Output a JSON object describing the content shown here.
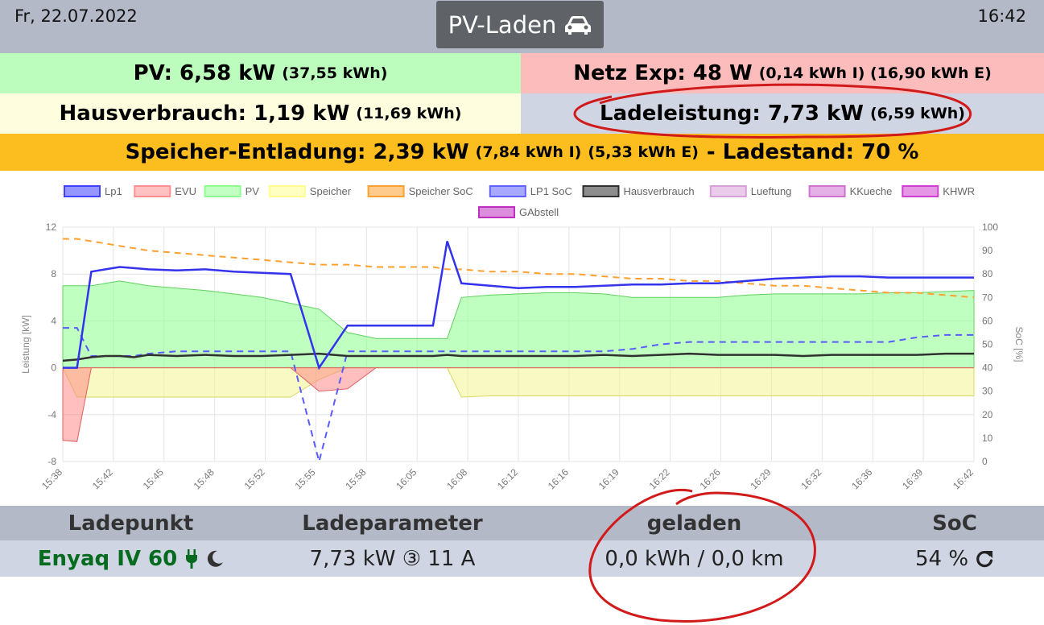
{
  "header": {
    "date": "Fr, 22.07.2022",
    "title": "PV-Laden",
    "time": "16:42"
  },
  "status": {
    "pv": {
      "label": "PV: 6,58 kW",
      "detail": "(37,55 kWh)",
      "color": "#bcfcbc"
    },
    "netz": {
      "label": "Netz Exp: 48 W",
      "detail": "(0,14 kWh I) (16,90 kWh E)",
      "color": "#fcbcbc"
    },
    "haus": {
      "label": "Hausverbrauch: 1,19 kW",
      "detail": "(11,69 kWh)",
      "color": "#fefedf"
    },
    "lade": {
      "label": "Ladeleistung: 7,73 kW",
      "detail": "(6,59 kWh)",
      "color": "#d0d5e3"
    },
    "speicher": {
      "label": "Speicher-Entladung: 2,39 kW",
      "detail1": "(7,84 kWh I)",
      "detail2": "(5,33 kWh E)",
      "label2": "- Ladestand: 70 %",
      "color": "#fcbe1e"
    }
  },
  "chart_data": {
    "type": "line",
    "legend": [
      "Lp1",
      "EVU",
      "PV",
      "Speicher",
      "Speicher SoC",
      "LP1 SoC",
      "Hausverbrauch",
      "Lueftung",
      "KKueche",
      "KHWR",
      "GAbstell"
    ],
    "legend_colors": [
      "#4040ff",
      "#ff9090",
      "#90ff90",
      "#ffff90",
      "#ffa030",
      "#6060ff",
      "#303030",
      "#d8a0d8",
      "#d070d0",
      "#d040d0",
      "#c030c0"
    ],
    "ylabel": "Leistung [kW]",
    "y2label": "SoC [%]",
    "ylim": [
      -8,
      12
    ],
    "y2lim": [
      0,
      100
    ],
    "yticks": [
      "12",
      "8",
      "4",
      "0",
      "-4",
      "-8"
    ],
    "y2ticks": [
      "100",
      "90",
      "80",
      "70",
      "60",
      "50",
      "40",
      "30",
      "20",
      "10",
      "0"
    ],
    "xticks": [
      "15:38",
      "15:42",
      "15:45",
      "15:48",
      "15:52",
      "15:55",
      "15:58",
      "16:05",
      "16:08",
      "16:12",
      "16:16",
      "16:19",
      "16:22",
      "16:26",
      "16:29",
      "16:32",
      "16:36",
      "16:39",
      "16:42"
    ],
    "x_minutes": [
      0,
      1,
      2,
      3,
      4,
      5,
      6,
      8,
      10,
      12,
      14,
      16,
      18,
      20,
      22,
      24,
      26,
      27,
      28,
      30,
      32,
      34,
      36,
      38,
      40,
      42,
      44,
      46,
      48,
      50,
      52,
      54,
      56,
      58,
      60,
      62,
      64
    ],
    "series": [
      {
        "name": "Lp1",
        "values": [
          0,
          0,
          8.2,
          8.4,
          8.6,
          8.5,
          8.4,
          8.3,
          8.4,
          8.2,
          8.1,
          8.0,
          0,
          3.6,
          3.6,
          3.6,
          3.6,
          10.8,
          7.2,
          7.0,
          6.8,
          6.9,
          6.9,
          7.0,
          7.1,
          7.1,
          7.2,
          7.2,
          7.4,
          7.6,
          7.7,
          7.8,
          7.8,
          7.7,
          7.7,
          7.7,
          7.7
        ]
      },
      {
        "name": "EVU",
        "values": [
          -6.2,
          -6.3,
          0,
          0,
          0,
          0,
          0,
          0,
          0,
          0,
          0,
          0,
          -2.0,
          -1.8,
          0,
          0,
          0,
          0,
          0,
          0,
          0,
          0,
          0,
          0,
          0,
          0,
          0,
          0,
          0,
          0,
          0,
          0,
          0,
          0,
          0,
          0,
          0
        ]
      },
      {
        "name": "PV",
        "values": [
          7.0,
          7.0,
          7.0,
          7.2,
          7.4,
          7.2,
          7.0,
          6.8,
          6.6,
          6.3,
          6.0,
          5.5,
          5.0,
          3.0,
          2.5,
          2.5,
          2.5,
          2.5,
          6.0,
          6.2,
          6.3,
          6.4,
          6.4,
          6.3,
          6.0,
          6.0,
          6.0,
          6.0,
          6.2,
          6.3,
          6.3,
          6.3,
          6.3,
          6.4,
          6.4,
          6.5,
          6.6
        ]
      },
      {
        "name": "Speicher",
        "values": [
          0,
          -2.5,
          -2.5,
          -2.5,
          -2.5,
          -2.5,
          -2.5,
          -2.5,
          -2.5,
          -2.5,
          -2.5,
          -2.5,
          -1.0,
          0,
          0,
          0,
          0,
          0,
          -2.5,
          -2.4,
          -2.4,
          -2.4,
          -2.4,
          -2.4,
          -2.4,
          -2.4,
          -2.4,
          -2.4,
          -2.4,
          -2.4,
          -2.4,
          -2.4,
          -2.4,
          -2.4,
          -2.4,
          -2.4,
          -2.4
        ]
      },
      {
        "name": "Speicher SoC",
        "values": [
          95,
          95,
          94,
          93,
          92,
          91,
          90,
          89,
          88,
          87,
          86,
          85,
          84,
          84,
          83,
          83,
          83,
          82,
          82,
          81,
          81,
          80,
          80,
          79,
          78,
          78,
          77,
          77,
          76,
          75,
          75,
          74,
          73,
          72,
          72,
          71,
          70
        ]
      },
      {
        "name": "LP1 SoC",
        "values": [
          57,
          57,
          45,
          45,
          45,
          45,
          46,
          47,
          47,
          47,
          47,
          47,
          0,
          47,
          47,
          47,
          47,
          47,
          47,
          47,
          47,
          47,
          47,
          47,
          48,
          50,
          51,
          51,
          51,
          51,
          51,
          51,
          51,
          51,
          53,
          54,
          54
        ]
      },
      {
        "name": "Hausverbrauch",
        "values": [
          0.6,
          0.7,
          0.9,
          1.0,
          1.0,
          0.9,
          1.1,
          1.0,
          1.1,
          1.0,
          1.0,
          1.1,
          1.2,
          1.0,
          1.0,
          1.0,
          1.0,
          1.1,
          1.0,
          1.0,
          1.0,
          1.0,
          1.0,
          1.1,
          1.0,
          1.1,
          1.2,
          1.1,
          1.1,
          1.1,
          1.0,
          1.1,
          1.1,
          1.1,
          1.1,
          1.2,
          1.2
        ]
      }
    ]
  },
  "table": {
    "headers": [
      "Ladepunkt",
      "Ladeparameter",
      "geladen",
      "SoC"
    ],
    "row": {
      "name": "Enyaq IV 60",
      "params": "7,73 kW ③ 11 A",
      "charged": "0,0 kWh / 0,0 km",
      "soc": "54 %"
    },
    "name_color": "#046b1f"
  }
}
